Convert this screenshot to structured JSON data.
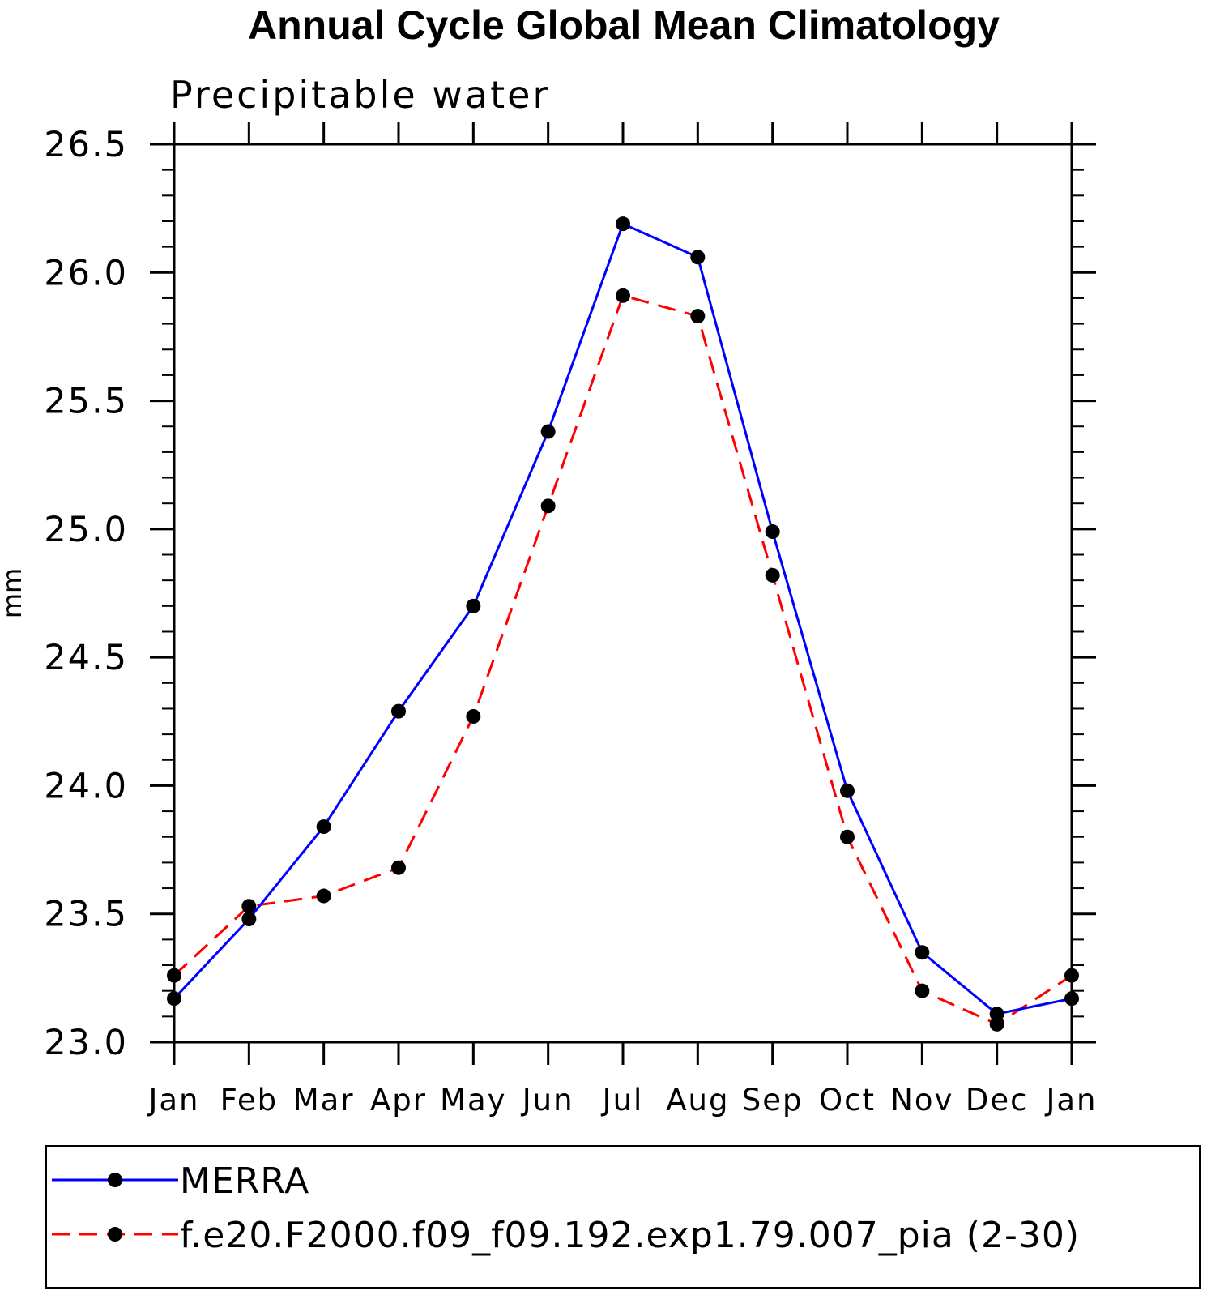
{
  "chart_data": {
    "type": "line",
    "title": "Annual Cycle Global Mean Climatology",
    "subtitle": "Precipitable water",
    "xlabel": "",
    "ylabel": "mm",
    "categories": [
      "Jan",
      "Feb",
      "Mar",
      "Apr",
      "May",
      "Jun",
      "Jul",
      "Aug",
      "Sep",
      "Oct",
      "Nov",
      "Dec",
      "Jan"
    ],
    "ylim": [
      23.0,
      26.5
    ],
    "yticks": [
      "23.0",
      "23.5",
      "24.0",
      "24.5",
      "25.0",
      "25.5",
      "26.0",
      "26.5"
    ],
    "grid": false,
    "legend_position": "bottom",
    "series": [
      {
        "name": "MERRA",
        "color": "#0000ff",
        "line_style": "solid",
        "marker": "filled-circle",
        "values": [
          23.17,
          23.48,
          23.84,
          24.29,
          24.7,
          25.38,
          26.19,
          26.06,
          24.99,
          23.98,
          23.35,
          23.11,
          23.17
        ]
      },
      {
        "name": "f.e20.F2000.f09_f09.192.exp1.79.007_pia (2-30)",
        "color": "#ff0000",
        "line_style": "dashed",
        "marker": "filled-circle",
        "values": [
          23.26,
          23.53,
          23.57,
          23.68,
          24.27,
          25.09,
          25.91,
          25.83,
          24.82,
          23.8,
          23.2,
          23.07,
          23.26
        ]
      }
    ]
  }
}
